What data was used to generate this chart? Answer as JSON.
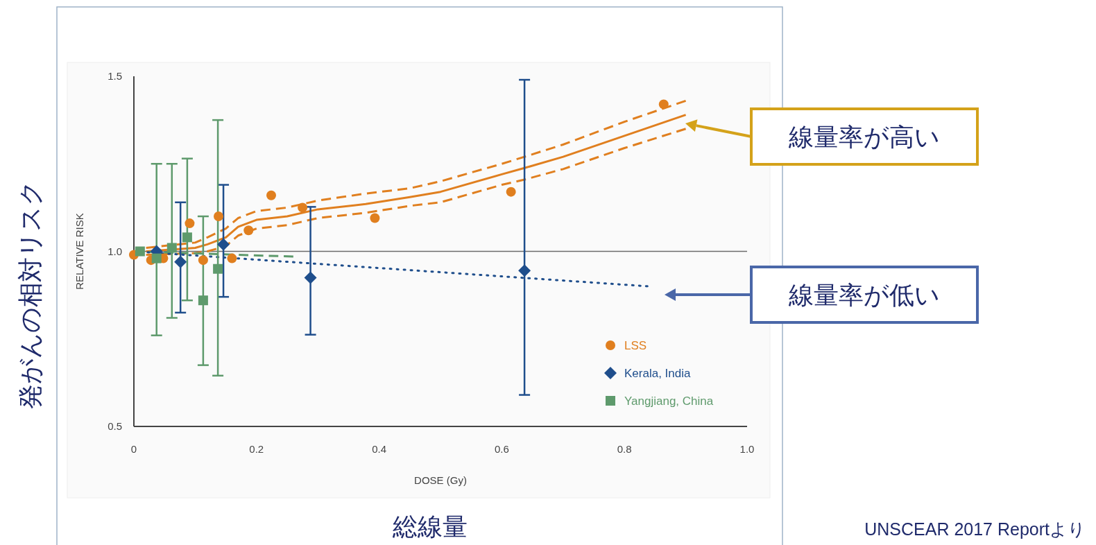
{
  "chart_data": {
    "type": "scatter",
    "xlabel": "DOSE (Gy)",
    "ylabel": "RELATIVE RISK",
    "xlim": [
      0,
      1.0
    ],
    "ylim": [
      0.5,
      1.5
    ],
    "xticks": [
      0,
      0.2,
      0.4,
      0.6,
      0.8,
      {
        "value": 1.0,
        "label": "1.0"
      }
    ],
    "yticks": [
      0.5,
      {
        "value": 1.0,
        "label": "1.0"
      },
      1.5
    ],
    "grid": false,
    "legend": "bottom right",
    "ref_lines": [
      {
        "axis": "y",
        "value": 1.0,
        "color": "#6b6b6b"
      }
    ],
    "series": [
      {
        "name": "LSS",
        "color": "#e07f1f",
        "marker": "circle",
        "x": [
          0,
          0.028,
          0.048,
          0.091,
          0.113,
          0.138,
          0.16,
          0.187,
          0.224,
          0.275,
          0.393,
          0.615,
          0.864
        ],
        "values": [
          0.99,
          0.975,
          0.98,
          1.08,
          0.975,
          1.1,
          0.98,
          1.06,
          1.16,
          1.125,
          1.095,
          1.17,
          1.42
        ]
      },
      {
        "name": "Kerala, India",
        "color": "#1f4e8c",
        "marker": "diamond",
        "x": [
          0.037,
          0.076,
          0.146,
          0.288,
          0.637
        ],
        "values": [
          1.0,
          0.97,
          1.02,
          0.925,
          0.945
        ],
        "errors": [
          null,
          [
            0.825,
            1.14
          ],
          [
            0.87,
            1.19
          ],
          [
            0.762,
            1.127
          ],
          [
            0.59,
            1.49
          ]
        ]
      },
      {
        "name": "Yangjiang, China",
        "color": "#5e9a6c",
        "marker": "square",
        "x": [
          0.01,
          0.037,
          0.062,
          0.087,
          0.113,
          0.137
        ],
        "values": [
          1.0,
          0.98,
          1.01,
          1.04,
          0.86,
          0.95
        ],
        "errors": [
          null,
          [
            0.76,
            1.25
          ],
          [
            0.81,
            1.25
          ],
          [
            0.86,
            1.265
          ],
          [
            0.675,
            1.1
          ],
          [
            0.645,
            1.375
          ]
        ]
      },
      {
        "type": "line",
        "color": "#e07f1f",
        "line_style": "solid",
        "x": [
          0.02,
          0.1,
          0.12,
          0.15,
          0.17,
          0.2,
          0.25,
          0.3,
          0.378,
          0.45,
          0.5,
          0.6,
          0.637,
          0.7,
          0.8,
          0.9
        ],
        "values": [
          1.0,
          1.01,
          1.02,
          1.04,
          1.07,
          1.09,
          1.1,
          1.12,
          1.135,
          1.155,
          1.17,
          1.22,
          1.238,
          1.27,
          1.33,
          1.39
        ]
      },
      {
        "type": "line",
        "color": "#e07f1f",
        "line_style": "dashed",
        "x": [
          0.02,
          0.1,
          0.12,
          0.15,
          0.17,
          0.2,
          0.25,
          0.3,
          0.378,
          0.45,
          0.5,
          0.6,
          0.637,
          0.7,
          0.8,
          0.9
        ],
        "values": [
          1.01,
          1.025,
          1.04,
          1.065,
          1.095,
          1.115,
          1.125,
          1.145,
          1.165,
          1.18,
          1.2,
          1.25,
          1.27,
          1.305,
          1.37,
          1.43
        ]
      },
      {
        "type": "line",
        "color": "#e07f1f",
        "line_style": "dashed",
        "x": [
          0.02,
          0.1,
          0.12,
          0.15,
          0.17,
          0.2,
          0.25,
          0.3,
          0.378,
          0.45,
          0.5,
          0.6,
          0.637,
          0.7,
          0.8,
          0.9
        ],
        "values": [
          0.99,
          0.995,
          1.0,
          1.015,
          1.045,
          1.065,
          1.075,
          1.095,
          1.11,
          1.13,
          1.14,
          1.19,
          1.205,
          1.235,
          1.295,
          1.35
        ]
      },
      {
        "type": "line",
        "color": "#5e9a6c",
        "line_style": "dashed",
        "x": [
          0,
          0.26
        ],
        "values": [
          1.0,
          0.985
        ]
      },
      {
        "type": "line",
        "color": "#1f4e8c",
        "line_style": "dotted",
        "x": [
          0,
          0.84
        ],
        "values": [
          1.0,
          0.9
        ]
      }
    ],
    "annotations": [
      "線量率が高い",
      "線量率が低い",
      "総線量",
      "発がんの相対リスク",
      "UNSCEAR 2017 Reportより"
    ]
  }
}
